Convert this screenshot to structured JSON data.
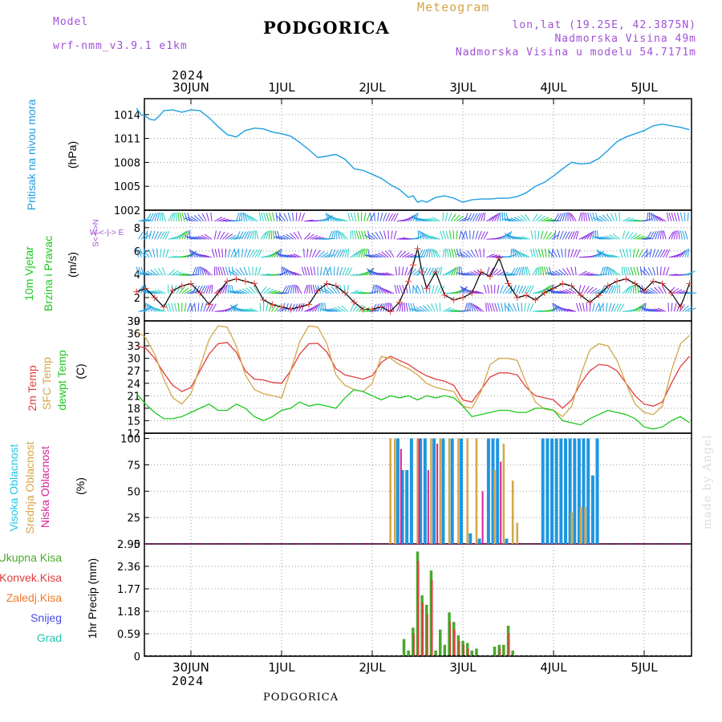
{
  "header": {
    "model_label": "Model",
    "model_name": "wrf-nmm_v3.9.1 e1km",
    "title": "PODGORICA",
    "subtitle": "Meteogram",
    "lonlat": "lon,lat (19.25E, 42.3875N)",
    "elevation": "Nadmorska Visina 49m",
    "model_elevation": "Nadmorska Visina u modelu 54.7171m",
    "year": "2024",
    "footer": "PODGORICA",
    "credit": "made by Angel"
  },
  "colors": {
    "pressure": "#1e9ee0",
    "temp2m": "#e03c3c",
    "sfc": "#d4a64a",
    "dewpt": "#1cc81c",
    "high_cloud": "#1e96e0",
    "mid_cloud": "#d4a64a",
    "low_cloud": "#d4229a",
    "total_precip": "#4aa82a",
    "conv_precip": "#e03c3c",
    "frozen": "#f07a28",
    "snow": "#4a4ae8",
    "graupel": "#28c8b0",
    "wind_purple": "#8a2be2"
  },
  "x_axis": {
    "top_labels": [
      "30JUN",
      "1JUL",
      "2JUL",
      "3JUL",
      "4JUL",
      "5JUL"
    ],
    "bottom_labels": [
      "30JUN",
      "1JUL",
      "2JUL",
      "3JUL",
      "4JUL",
      "5JUL"
    ],
    "first_label_year": "2024"
  },
  "panels": {
    "pressure": {
      "label": "Pritisak na nivou mora",
      "unit": "(hPa)"
    },
    "wind": {
      "label1": "10m Vjetar",
      "label2": "Brzina i Pravac",
      "unit": "(m/s)",
      "compass": "W <-|-> E",
      "compass2": "S<-|->N"
    },
    "temp": {
      "label1": "2m Temp",
      "label2": "SFC Temp",
      "label3": "dewpt Temp",
      "unit": "(C)"
    },
    "cloud": {
      "label1": "Visoka Oblacnost",
      "label2": "Srednja Oblacnost",
      "label3": "Niska Oblacnost",
      "unit": "(%)"
    },
    "precip": {
      "unit_label": "1hr Precip (mm)",
      "legend": [
        "Ukupna Kisa",
        "Konvek.Kisa",
        "Zaledj.Kisa",
        "Snijeg",
        "Grad"
      ]
    }
  },
  "chart_data": [
    {
      "type": "line",
      "name": "pressure",
      "ylim": [
        1002,
        1016
      ],
      "yticks": [
        1002,
        1005,
        1008,
        1011,
        1014
      ],
      "x_days": [
        -0.6,
        -0.55,
        -0.5,
        -0.45,
        -0.4,
        -0.35,
        -0.3,
        -0.2,
        -0.1,
        0.0,
        0.1,
        0.2,
        0.3,
        0.4,
        0.5,
        0.6,
        0.7,
        0.8,
        0.9,
        1.0,
        1.1,
        1.2,
        1.3,
        1.4,
        1.5,
        1.6,
        1.7,
        1.8,
        1.9,
        2.0,
        2.1,
        2.2,
        2.3,
        2.4,
        2.45,
        2.5,
        2.55,
        2.6,
        2.7,
        2.8,
        2.9,
        3.0,
        3.1,
        3.2,
        3.3,
        3.4,
        3.5,
        3.6,
        3.7,
        3.8,
        3.9,
        4.0,
        4.1,
        4.2,
        4.3,
        4.4,
        4.5,
        4.6,
        4.7,
        4.8,
        4.9,
        5.0,
        5.1,
        5.2,
        5.3,
        5.4,
        5.5
      ],
      "values": [
        1014.8,
        1014.0,
        1013.8,
        1013.4,
        1013.3,
        1013.8,
        1014.5,
        1014.6,
        1014.3,
        1014.6,
        1014.5,
        1013.6,
        1012.5,
        1011.5,
        1011.2,
        1012.0,
        1012.3,
        1012.2,
        1011.8,
        1011.6,
        1011.3,
        1010.5,
        1009.6,
        1008.6,
        1008.8,
        1009.0,
        1008.4,
        1007.2,
        1007.0,
        1006.5,
        1006.0,
        1005.2,
        1004.6,
        1003.6,
        1003.8,
        1003.0,
        1003.2,
        1003.0,
        1003.6,
        1003.8,
        1003.5,
        1003.0,
        1003.3,
        1003.4,
        1003.4,
        1003.5,
        1003.5,
        1003.7,
        1004.2,
        1005.0,
        1005.5,
        1006.3,
        1007.2,
        1008.0,
        1007.8,
        1007.9,
        1008.5,
        1009.5,
        1010.6,
        1011.2,
        1011.6,
        1012.0,
        1012.6,
        1012.8,
        1012.6,
        1012.4,
        1012.1
      ]
    },
    {
      "type": "line",
      "name": "wind_speed",
      "ylim": [
        0,
        9.5
      ],
      "yticks": [
        0,
        2,
        4,
        6,
        8
      ],
      "x_days": [
        -0.6,
        -0.5,
        -0.4,
        -0.3,
        -0.2,
        -0.1,
        0.0,
        0.1,
        0.2,
        0.3,
        0.4,
        0.5,
        0.6,
        0.7,
        0.8,
        0.9,
        1.0,
        1.1,
        1.2,
        1.3,
        1.4,
        1.5,
        1.6,
        1.7,
        1.8,
        1.9,
        2.0,
        2.1,
        2.2,
        2.3,
        2.4,
        2.45,
        2.5,
        2.55,
        2.6,
        2.7,
        2.8,
        2.9,
        3.0,
        3.1,
        3.2,
        3.3,
        3.4,
        3.5,
        3.6,
        3.7,
        3.8,
        3.9,
        4.0,
        4.1,
        4.2,
        4.3,
        4.4,
        4.5,
        4.6,
        4.7,
        4.8,
        4.9,
        5.0,
        5.1,
        5.2,
        5.3,
        5.4,
        5.5
      ],
      "values": [
        2.5,
        2.8,
        2.0,
        1.2,
        2.6,
        3.0,
        3.2,
        2.4,
        1.4,
        2.4,
        3.4,
        3.6,
        3.4,
        3.2,
        1.8,
        1.4,
        1.2,
        1.0,
        1.2,
        1.4,
        2.6,
        3.2,
        3.0,
        2.4,
        1.6,
        1.0,
        1.0,
        1.2,
        0.8,
        1.6,
        3.4,
        4.8,
        6.2,
        4.2,
        2.8,
        4.2,
        2.2,
        1.8,
        2.0,
        2.4,
        4.2,
        3.8,
        5.4,
        3.2,
        2.0,
        2.2,
        1.8,
        2.4,
        2.8,
        3.2,
        3.0,
        2.2,
        1.6,
        2.2,
        3.0,
        3.4,
        3.6,
        3.2,
        2.6,
        3.4,
        3.2,
        2.4,
        1.2,
        3.2
      ]
    },
    {
      "type": "line",
      "name": "temperature",
      "ylim": [
        12,
        39
      ],
      "yticks": [
        12,
        15,
        18,
        21,
        24,
        27,
        30,
        33,
        36,
        39
      ],
      "x_days": [
        -0.6,
        -0.5,
        -0.4,
        -0.3,
        -0.2,
        -0.1,
        0.0,
        0.1,
        0.2,
        0.3,
        0.4,
        0.5,
        0.6,
        0.7,
        0.8,
        0.9,
        1.0,
        1.1,
        1.2,
        1.3,
        1.4,
        1.5,
        1.6,
        1.7,
        1.8,
        1.9,
        2.0,
        2.1,
        2.2,
        2.3,
        2.4,
        2.5,
        2.6,
        2.7,
        2.8,
        2.9,
        3.0,
        3.1,
        3.2,
        3.3,
        3.4,
        3.5,
        3.6,
        3.7,
        3.8,
        3.9,
        4.0,
        4.1,
        4.2,
        4.3,
        4.4,
        4.5,
        4.6,
        4.7,
        4.8,
        4.9,
        5.0,
        5.1,
        5.2,
        5.3,
        5.4,
        5.5
      ],
      "series": [
        {
          "name": "2m Temp",
          "values": [
            33.0,
            32.5,
            30.0,
            26.5,
            23.5,
            22.0,
            23.0,
            27.0,
            31.0,
            33.5,
            33.8,
            31.5,
            27.0,
            25.0,
            24.8,
            24.2,
            24.0,
            27.0,
            31.0,
            33.5,
            33.6,
            31.5,
            27.5,
            26.0,
            25.5,
            25.0,
            25.8,
            29.0,
            30.5,
            29.5,
            28.5,
            27.0,
            25.8,
            25.0,
            24.5,
            23.5,
            20.0,
            19.5,
            22.5,
            25.5,
            26.5,
            26.5,
            26.0,
            23.0,
            21.0,
            20.5,
            20.0,
            18.0,
            20.0,
            24.0,
            27.0,
            28.5,
            28.3,
            27.0,
            24.0,
            21.0,
            19.0,
            18.5,
            19.5,
            24.0,
            28.0,
            30.5
          ]
        },
        {
          "name": "SFC Temp",
          "values": [
            36.5,
            35.0,
            31.0,
            25.0,
            20.5,
            19.0,
            21.5,
            28.0,
            34.5,
            37.8,
            37.5,
            33.0,
            26.0,
            22.5,
            21.5,
            21.0,
            20.5,
            27.0,
            34.0,
            37.8,
            37.5,
            33.5,
            26.0,
            23.5,
            22.5,
            22.0,
            24.0,
            30.5,
            30.0,
            28.5,
            27.5,
            26.0,
            24.0,
            23.0,
            22.5,
            22.0,
            18.5,
            18.0,
            22.0,
            28.5,
            30.0,
            30.0,
            29.5,
            24.0,
            19.5,
            17.8,
            17.5,
            16.0,
            18.5,
            26.0,
            32.0,
            33.5,
            33.0,
            29.5,
            24.0,
            19.0,
            17.0,
            16.5,
            18.5,
            27.0,
            33.5,
            35.5
          ]
        },
        {
          "name": "dewpt Temp",
          "values": [
            21.5,
            19.0,
            17.0,
            15.5,
            15.5,
            16.0,
            17.0,
            18.0,
            19.0,
            17.5,
            17.5,
            19.0,
            18.0,
            16.0,
            15.0,
            16.0,
            17.5,
            18.0,
            19.5,
            18.5,
            19.0,
            18.5,
            18.0,
            20.5,
            22.5,
            22.0,
            21.0,
            20.0,
            21.0,
            20.5,
            21.0,
            20.0,
            21.0,
            20.5,
            21.0,
            20.5,
            18.5,
            16.0,
            16.5,
            17.0,
            17.5,
            17.5,
            17.0,
            17.0,
            18.0,
            18.0,
            17.5,
            15.0,
            14.5,
            14.0,
            15.5,
            16.5,
            17.5,
            17.0,
            16.5,
            15.5,
            13.5,
            13.0,
            13.5,
            15.0,
            16.0,
            14.5
          ]
        }
      ]
    },
    {
      "type": "bar",
      "name": "cloud_cover",
      "ylim": [
        0,
        105
      ],
      "yticks": [
        0,
        25,
        50,
        75,
        100
      ],
      "series": [
        {
          "name": "Visoka Oblacnost",
          "x_days": [
            2.3,
            2.35,
            2.4,
            2.45,
            2.55,
            2.6,
            2.7,
            2.8,
            2.9,
            3.0,
            3.1,
            3.2,
            3.3,
            3.35,
            3.4,
            3.5,
            3.9,
            3.95,
            4.0,
            4.05,
            4.1,
            4.15,
            4.2,
            4.25,
            4.3,
            4.35,
            4.4,
            4.45,
            4.5
          ],
          "values": [
            100,
            70,
            70,
            100,
            100,
            100,
            100,
            100,
            100,
            100,
            10,
            5,
            100,
            100,
            100,
            5,
            100,
            100,
            100,
            100,
            100,
            100,
            100,
            100,
            100,
            100,
            100,
            65,
            100
          ]
        },
        {
          "name": "Srednja Oblacnost",
          "x_days": [
            2.2,
            2.25,
            2.5,
            2.65,
            2.75,
            2.85,
            2.95,
            3.05,
            3.15,
            3.35,
            3.45,
            3.55,
            3.6,
            4.2,
            4.3,
            4.35
          ],
          "values": [
            100,
            100,
            100,
            100,
            100,
            100,
            100,
            100,
            100,
            70,
            95,
            60,
            20,
            30,
            35,
            35
          ]
        },
        {
          "name": "Niska Oblacnost",
          "x_days": [
            2.3,
            2.5,
            2.6,
            2.7,
            3.2,
            3.4
          ],
          "values": [
            90,
            100,
            70,
            95,
            50,
            78
          ]
        }
      ]
    },
    {
      "type": "bar",
      "name": "precipitation",
      "ylim": [
        0,
        2.95
      ],
      "yticks": [
        0,
        0.59,
        1.18,
        1.77,
        2.36,
        2.95
      ],
      "series": [
        {
          "name": "Ukupna Kisa",
          "x_days": [
            2.35,
            2.4,
            2.45,
            2.5,
            2.55,
            2.6,
            2.65,
            2.7,
            2.75,
            2.8,
            2.85,
            2.9,
            2.95,
            3.0,
            3.05,
            3.1,
            3.15,
            3.35,
            3.4,
            3.45,
            3.5,
            3.55
          ],
          "values": [
            0.45,
            0.15,
            0.75,
            2.75,
            1.6,
            1.35,
            2.25,
            0.15,
            0.7,
            0.3,
            1.15,
            0.9,
            0.55,
            0.4,
            0.35,
            0.15,
            0.2,
            0.25,
            0.3,
            0.3,
            0.8,
            0.15
          ]
        },
        {
          "name": "Konvek.Kisa",
          "x_days": [
            2.45,
            2.5,
            2.55,
            2.6,
            2.65,
            2.85,
            2.9,
            2.95,
            3.0,
            3.05,
            3.4,
            3.5
          ],
          "values": [
            0.6,
            2.5,
            1.4,
            1.1,
            2.0,
            0.9,
            0.7,
            0.4,
            0.3,
            0.2,
            0.2,
            0.6
          ]
        }
      ]
    }
  ]
}
